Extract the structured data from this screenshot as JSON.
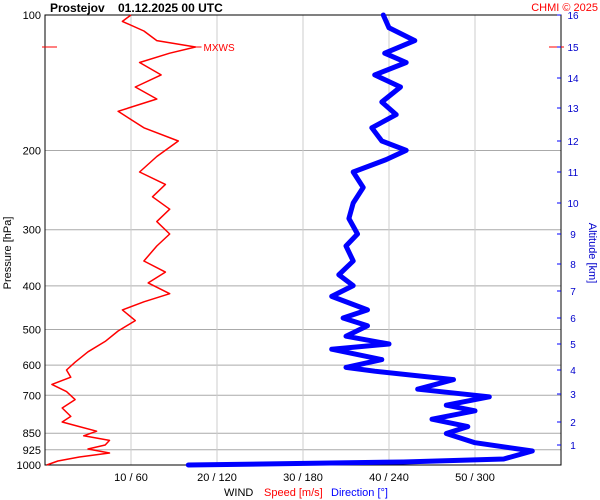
{
  "header": {
    "station": "Prostejov",
    "datetime": "01.12.2025 00 UTC",
    "copyright": "CHMI © 2025"
  },
  "axis_titles": {
    "left": "Pressure [hPa]",
    "right": "Altitude [km]",
    "bottom_wind": "WIND",
    "bottom_speed": "Speed [m/s]",
    "bottom_direction": "Direction [°]"
  },
  "colors": {
    "speed": "#ff0000",
    "direction": "#0000ff",
    "grid": "#aaaaaa",
    "text": "#000000",
    "axis_right_text": "#0000cc"
  },
  "chart_data": {
    "type": "line",
    "title": "Prostejov   01.12.2025 00 UTC",
    "ylabel": "Pressure [hPa]",
    "y2label": "Altitude [km]",
    "xlabel": "WIND  Speed [m/s]  Direction [°]",
    "y_scale": "log",
    "ylim": [
      1000,
      100
    ],
    "pressure_ticks": [
      100,
      200,
      300,
      400,
      500,
      600,
      700,
      850,
      925,
      1000
    ],
    "altitude_ticks": [
      1,
      2,
      3,
      4,
      5,
      6,
      7,
      8,
      9,
      10,
      11,
      12,
      13,
      14,
      15,
      16
    ],
    "x_ticks": [
      "10 / 60",
      "20 / 120",
      "30 / 180",
      "40 / 240",
      "50 / 300"
    ],
    "x_speed_range": [
      0,
      60
    ],
    "x_direction_range": [
      0,
      360
    ],
    "annotation": {
      "text": "MXWS",
      "altitude_km": 15
    },
    "series": [
      {
        "name": "Speed [m/s]",
        "unit": "m/s",
        "points": [
          [
            0.2,
            0.0
          ],
          [
            1.5,
            0.2
          ],
          [
            4.0,
            0.4
          ],
          [
            7.5,
            0.6
          ],
          [
            5.0,
            0.8
          ],
          [
            7.0,
            1.0
          ],
          [
            7.5,
            1.2
          ],
          [
            4.5,
            1.4
          ],
          [
            6.0,
            1.6
          ],
          [
            4.0,
            1.8
          ],
          [
            2.0,
            2.0
          ],
          [
            3.0,
            2.2
          ],
          [
            2.0,
            2.5
          ],
          [
            3.5,
            2.8
          ],
          [
            2.5,
            3.1
          ],
          [
            0.8,
            3.4
          ],
          [
            3.0,
            3.7
          ],
          [
            2.5,
            4.0
          ],
          [
            3.5,
            4.3
          ],
          [
            5.0,
            4.7
          ],
          [
            7.0,
            5.1
          ],
          [
            8.5,
            5.5
          ],
          [
            10.5,
            5.9
          ],
          [
            9.0,
            6.3
          ],
          [
            11.5,
            6.6
          ],
          [
            14.5,
            6.9
          ],
          [
            12.0,
            7.3
          ],
          [
            14.0,
            7.7
          ],
          [
            11.5,
            8.1
          ],
          [
            13.0,
            8.6
          ],
          [
            14.5,
            9.0
          ],
          [
            13.0,
            9.4
          ],
          [
            14.5,
            9.8
          ],
          [
            12.5,
            10.2
          ],
          [
            14.0,
            10.6
          ],
          [
            11.0,
            11.0
          ],
          [
            13.0,
            11.5
          ],
          [
            15.5,
            12.0
          ],
          [
            11.5,
            12.4
          ],
          [
            8.5,
            12.9
          ],
          [
            13.0,
            13.3
          ],
          [
            10.5,
            13.7
          ],
          [
            13.5,
            14.1
          ],
          [
            11.0,
            14.5
          ],
          [
            14.5,
            14.8
          ],
          [
            17.5,
            15.0
          ],
          [
            13.0,
            15.2
          ],
          [
            11.5,
            15.5
          ],
          [
            9.0,
            15.8
          ],
          [
            10.0,
            16.0
          ]
        ]
      },
      {
        "name": "Direction [°]",
        "unit": "deg",
        "points": [
          [
            100,
            0.0
          ],
          [
            250,
            0.15
          ],
          [
            320,
            0.3
          ],
          [
            340,
            0.7
          ],
          [
            300,
            1.1
          ],
          [
            280,
            1.5
          ],
          [
            295,
            1.8
          ],
          [
            270,
            2.1
          ],
          [
            300,
            2.4
          ],
          [
            280,
            2.6
          ],
          [
            310,
            2.9
          ],
          [
            260,
            3.2
          ],
          [
            285,
            3.6
          ],
          [
            230,
            3.95
          ],
          [
            210,
            4.1
          ],
          [
            235,
            4.4
          ],
          [
            200,
            4.8
          ],
          [
            240,
            5.0
          ],
          [
            210,
            5.3
          ],
          [
            225,
            5.7
          ],
          [
            208,
            6.0
          ],
          [
            225,
            6.3
          ],
          [
            200,
            6.8
          ],
          [
            215,
            7.2
          ],
          [
            205,
            7.6
          ],
          [
            215,
            8.1
          ],
          [
            210,
            8.6
          ],
          [
            218,
            9.0
          ],
          [
            212,
            9.5
          ],
          [
            215,
            10.0
          ],
          [
            222,
            10.5
          ],
          [
            215,
            11.0
          ],
          [
            238,
            11.4
          ],
          [
            252,
            11.7
          ],
          [
            235,
            12.0
          ],
          [
            228,
            12.4
          ],
          [
            245,
            12.8
          ],
          [
            235,
            13.2
          ],
          [
            248,
            13.7
          ],
          [
            230,
            14.1
          ],
          [
            252,
            14.5
          ],
          [
            237,
            14.8
          ],
          [
            258,
            15.2
          ],
          [
            240,
            15.6
          ],
          [
            236,
            16.0
          ]
        ]
      }
    ]
  }
}
